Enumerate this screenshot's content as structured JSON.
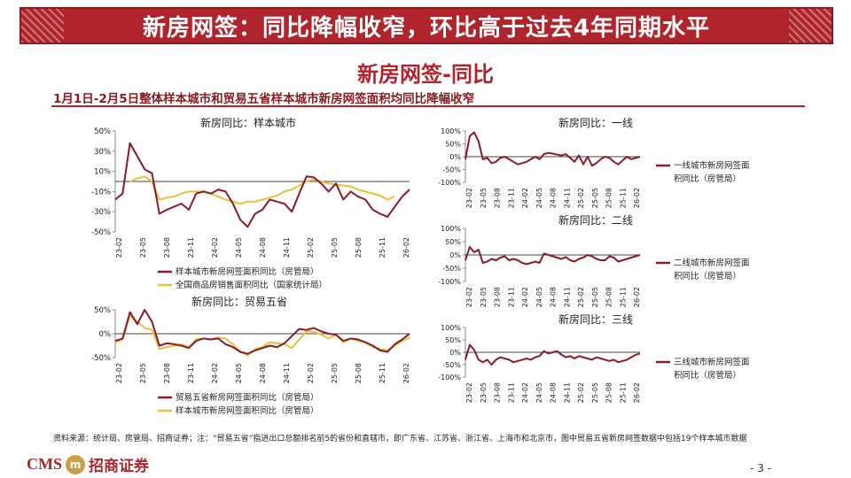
{
  "header": {
    "title": "新房网签：同比降幅收窄，环比高于过去4年同期水平"
  },
  "section_title": "新房网签-同比",
  "subtitle": "1月1日-2月5日整体样本城市和贸易五省样本城市新房网签面积均同比降幅收窄",
  "footer": {
    "source": "资料来源：统计局、房管局、招商证券；注：“贸易五省”指进出口总额排名前5的省份和直辖市，即广东省、江苏省、浙江省、上海市和北京市，图中贸易五省新房网签数据中包括19个样本城市数据",
    "logo_text": "CMS",
    "logo_mark": "m",
    "logo_cn": "招商证券",
    "page": "- 3 -"
  },
  "colors": {
    "brand": "#b0252b",
    "series_red": "#8b1a2b",
    "series_yellow": "#e6c13a"
  },
  "chart_data": [
    {
      "id": "sample",
      "type": "line",
      "title": "新房同比：样本城市",
      "ylim": [
        -50,
        50
      ],
      "yticks": [
        "50%",
        "30%",
        "10%",
        "-10%",
        "-30%",
        "-50%"
      ],
      "xticks": [
        "23-02",
        "23-05",
        "23-08",
        "23-11",
        "24-02",
        "24-05",
        "24-08",
        "24-11",
        "25-02",
        "25-05",
        "25-08",
        "25-11",
        "26-02"
      ],
      "series": [
        {
          "name": "样本城市新房网签面积同比（房管局）",
          "color": "#8b1a2b",
          "values": [
            -18,
            -12,
            38,
            25,
            12,
            8,
            -32,
            -28,
            -25,
            -22,
            -28,
            -12,
            -10,
            -12,
            -8,
            -10,
            -22,
            -38,
            -45,
            -32,
            -28,
            -18,
            -20,
            -22,
            -30,
            -12,
            5,
            4,
            -2,
            -10,
            -2,
            -18,
            -10,
            -15,
            -18,
            -28,
            -32,
            -35,
            -25,
            -15,
            -8
          ]
        },
        {
          "name": "全国商品房销售面积同比（国家统计局）",
          "color": "#e6c13a",
          "values": [
            null,
            null,
            0,
            3,
            5,
            0,
            -18,
            -16,
            -15,
            -12,
            -10,
            -10,
            -10,
            -12,
            -15,
            -18,
            -20,
            -22,
            -20,
            -20,
            -18,
            -16,
            -14,
            -10,
            -8,
            -4,
            0,
            2,
            0,
            -2,
            -3,
            -4,
            -5,
            -8,
            -10,
            -12,
            -14,
            -18,
            -15,
            null,
            null
          ]
        }
      ]
    },
    {
      "id": "trade5",
      "type": "line",
      "title": "新房同比：贸易五省",
      "ylim": [
        -50,
        50
      ],
      "yticks": [
        "50%",
        "0%",
        "-50%"
      ],
      "xticks": [
        "23-02",
        "23-05",
        "23-08",
        "23-11",
        "24-02",
        "24-05",
        "24-08",
        "24-11",
        "25-02",
        "25-05",
        "25-08",
        "25-11",
        "26-02"
      ],
      "series": [
        {
          "name": "贸易五省新房网签面积同比（房管局）",
          "color": "#8b1a2b",
          "values": [
            -15,
            -10,
            45,
            20,
            50,
            25,
            -25,
            -20,
            -22,
            -25,
            -30,
            -15,
            -10,
            -12,
            -10,
            -22,
            -28,
            -38,
            -42,
            -35,
            -30,
            -25,
            -28,
            -20,
            -5,
            10,
            8,
            12,
            5,
            0,
            -2,
            -15,
            -10,
            -12,
            -18,
            -25,
            -35,
            -38,
            -22,
            -12,
            0
          ]
        },
        {
          "name": "样本城市新房网签面积同比（房管局）",
          "color": "#e6c13a",
          "values": [
            -18,
            -12,
            38,
            25,
            12,
            8,
            -32,
            -28,
            -25,
            -22,
            -28,
            -12,
            -10,
            -12,
            -8,
            -10,
            -22,
            -38,
            -45,
            -32,
            -28,
            -18,
            -20,
            -22,
            -30,
            -12,
            5,
            4,
            -2,
            -10,
            -2,
            -18,
            -10,
            -15,
            -18,
            -28,
            -32,
            -35,
            -25,
            -15,
            -8
          ]
        }
      ]
    },
    {
      "id": "tier1",
      "type": "line",
      "title": "新房同比：一线",
      "ylim": [
        -100,
        100
      ],
      "yticks": [
        "100%",
        "50%",
        "0%",
        "-50%",
        "-100%"
      ],
      "xticks": [
        "23-02",
        "23-05",
        "23-08",
        "23-11",
        "24-02",
        "24-05",
        "24-08",
        "24-11",
        "25-02",
        "25-05",
        "25-08",
        "25-11",
        "26-02"
      ],
      "series": [
        {
          "name": "一线城市新房网签面积同比（房管局）",
          "color": "#8b1a2b",
          "values": [
            -10,
            80,
            95,
            60,
            -10,
            -5,
            -25,
            -20,
            -5,
            0,
            -10,
            -20,
            -30,
            -25,
            -20,
            -10,
            0,
            -10,
            10,
            15,
            12,
            8,
            5,
            10,
            -5,
            -20,
            5,
            -30,
            0,
            -35,
            -25,
            -10,
            0,
            -5,
            -20,
            -30,
            -15,
            0,
            -10,
            -5,
            0
          ]
        }
      ]
    },
    {
      "id": "tier2",
      "type": "line",
      "title": "新房同比：二线",
      "ylim": [
        -100,
        100
      ],
      "yticks": [
        "100%",
        "50%",
        "0%",
        "-50%",
        "-100%"
      ],
      "xticks": [
        "23-02",
        "23-05",
        "23-08",
        "23-11",
        "24-02",
        "24-05",
        "24-08",
        "24-11",
        "25-02",
        "25-05",
        "25-08",
        "25-11",
        "26-02"
      ],
      "series": [
        {
          "name": "二线城市新房网签面积同比（房管局）",
          "color": "#8b1a2b",
          "values": [
            -20,
            30,
            10,
            20,
            -30,
            -25,
            -15,
            -20,
            -10,
            -5,
            -20,
            -15,
            -20,
            -30,
            -35,
            -30,
            -25,
            -30,
            5,
            0,
            -5,
            -10,
            -15,
            -8,
            -20,
            -25,
            -15,
            -10,
            0,
            -5,
            -15,
            -20,
            -20,
            -5,
            -10,
            -25,
            -20,
            -15,
            -10,
            -5,
            0
          ]
        }
      ]
    },
    {
      "id": "tier3",
      "type": "line",
      "title": "新房同比：三线",
      "ylim": [
        -100,
        100
      ],
      "yticks": [
        "100%",
        "50%",
        "0%",
        "-50%",
        "-100%"
      ],
      "xticks": [
        "23-02",
        "23-05",
        "23-08",
        "23-11",
        "24-02",
        "24-05",
        "24-08",
        "24-11",
        "25-02",
        "25-05",
        "25-08",
        "25-11",
        "26-02"
      ],
      "series": [
        {
          "name": "三线城市新房网签面积同比（房管局）",
          "color": "#8b1a2b",
          "values": [
            -30,
            30,
            10,
            -30,
            -40,
            -30,
            -50,
            -30,
            -20,
            -25,
            -30,
            -40,
            -35,
            -30,
            -25,
            -30,
            -20,
            -15,
            5,
            -5,
            0,
            5,
            -10,
            -20,
            -15,
            -25,
            -15,
            -20,
            -25,
            -30,
            -20,
            -25,
            -30,
            -35,
            -30,
            -40,
            -35,
            -30,
            -20,
            -10,
            -5
          ]
        }
      ]
    }
  ]
}
